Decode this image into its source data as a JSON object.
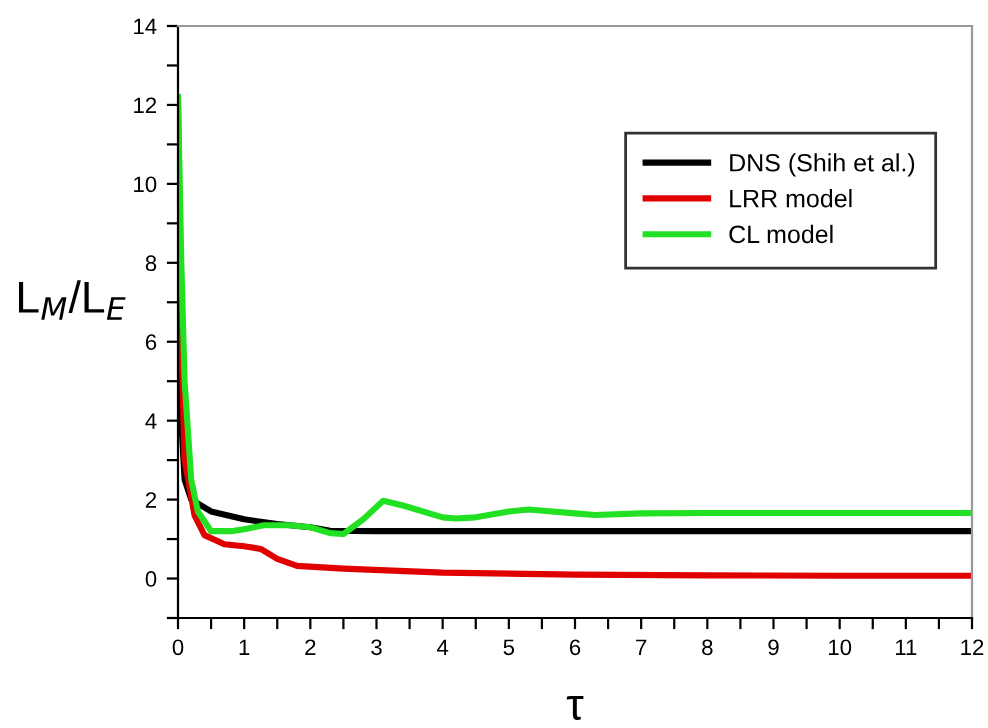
{
  "chart_data": {
    "type": "line",
    "xlabel": "τ",
    "ylabel": "L$_{M}$/L$_{E}$",
    "xlim": [
      0,
      12
    ],
    "ylim": [
      -1,
      14
    ],
    "xticks": [
      0,
      {
        "value": 0.5,
        "label": null
      },
      1,
      {
        "value": 1.5,
        "label": null
      },
      2,
      {
        "value": 2.5,
        "label": null
      },
      3,
      {
        "value": 3.5,
        "label": null
      },
      4,
      {
        "value": 4.5,
        "label": null
      },
      5,
      {
        "value": 5.5,
        "label": null
      },
      6,
      {
        "value": 6.5,
        "label": null
      },
      7,
      {
        "value": 7.5,
        "label": null
      },
      8,
      {
        "value": 8.5,
        "label": null
      },
      9,
      {
        "value": 9.5,
        "label": null
      },
      10,
      {
        "value": 10.5,
        "label": null
      },
      11,
      {
        "value": 11.5,
        "label": null
      },
      12
    ],
    "yticks": [
      {
        "value": -1,
        "label": null
      },
      0,
      {
        "value": 1,
        "label": null
      },
      2,
      {
        "value": 3,
        "label": null
      },
      4,
      {
        "value": 5,
        "label": null
      },
      6,
      {
        "value": 7,
        "label": null
      },
      8,
      {
        "value": 9,
        "label": null
      },
      10,
      {
        "value": 11,
        "label": null
      },
      12,
      {
        "value": 13,
        "label": null
      },
      14
    ],
    "grid": false,
    "legend": "top right",
    "marker": "none",
    "line_style": "solid",
    "series": [
      {
        "name": "DNS (Shih et al.)",
        "color": "#000000",
        "x": [
          0,
          0.05,
          0.1,
          0.2,
          0.5,
          1,
          1.5,
          2,
          2.3,
          3,
          4,
          6,
          8,
          10,
          12
        ],
        "values": [
          7.5,
          4,
          2.5,
          2.0,
          1.7,
          1.5,
          1.38,
          1.3,
          1.21,
          1.2,
          1.2,
          1.2,
          1.2,
          1.2,
          1.2
        ]
      },
      {
        "name": "LRR model",
        "color": "#e00000",
        "x": [
          0,
          0.05,
          0.1,
          0.25,
          0.4,
          0.7,
          1,
          1.25,
          1.5,
          1.8,
          2.5,
          4,
          6,
          8,
          10,
          12
        ],
        "values": [
          12,
          6,
          3,
          1.6,
          1.1,
          0.87,
          0.82,
          0.75,
          0.5,
          0.32,
          0.25,
          0.15,
          0.1,
          0.08,
          0.07,
          0.07
        ]
      },
      {
        "name": "CL model",
        "color": "#22e022",
        "x": [
          0,
          0.05,
          0.1,
          0.2,
          0.3,
          0.5,
          0.8,
          1,
          1.3,
          1.7,
          2,
          2.3,
          2.5,
          2.8,
          3.1,
          3.4,
          4,
          4.2,
          4.5,
          5,
          5.3,
          6,
          6.3,
          7,
          8,
          9,
          10,
          11,
          12
        ],
        "values": [
          12.2,
          8,
          5,
          2.5,
          1.7,
          1.2,
          1.2,
          1.25,
          1.35,
          1.35,
          1.3,
          1.15,
          1.13,
          1.5,
          1.97,
          1.85,
          1.55,
          1.52,
          1.55,
          1.7,
          1.75,
          1.65,
          1.61,
          1.65,
          1.66,
          1.66,
          1.66,
          1.66,
          1.66
        ]
      }
    ]
  }
}
